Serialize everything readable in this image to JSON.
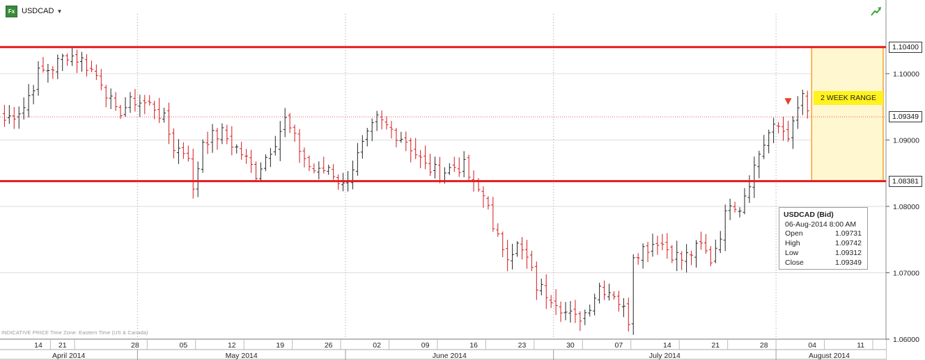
{
  "header": {
    "symbol": "USDCAD",
    "badge": "Fx"
  },
  "footer": {
    "text": "INDICATIVE PRICE   Time Zone: Eastern Time (US & Canada)"
  },
  "info_box": {
    "title": "USDCAD (Bid)",
    "datetime": "06-Aug-2014 8:00 AM",
    "rows": [
      {
        "label": "Open",
        "value": "1.09731"
      },
      {
        "label": "High",
        "value": "1.09742"
      },
      {
        "label": "Low",
        "value": "1.09312"
      },
      {
        "label": "Close",
        "value": "1.09349"
      }
    ]
  },
  "range_box": {
    "label": "2 WEEK RANGE",
    "top": 1.104,
    "bottom": 1.08381
  },
  "price_tags": [
    {
      "value": "1.10400",
      "price": 1.104
    },
    {
      "value": "1.09349",
      "price": 1.09349
    },
    {
      "value": "1.08381",
      "price": 1.08381
    }
  ],
  "colors": {
    "up": "#222222",
    "down": "#d4161a",
    "level_line": "#e21c1c",
    "range_fill": "#fff7cf",
    "range_border": "#f3a32b",
    "range_label_bg": "#fff21f"
  },
  "chart_data": {
    "type": "ohlc",
    "title": "USDCAD",
    "series_name": "USDCAD (Bid)",
    "ylim": [
      1.06,
      1.109
    ],
    "y_ticks": [
      "1.06000",
      "1.07000",
      "1.08000",
      "1.09000",
      "1.10000"
    ],
    "y_tick_values": [
      1.06,
      1.07,
      1.08,
      1.09,
      1.1
    ],
    "horizontal_levels": [
      1.104,
      1.08381
    ],
    "current_price": 1.09349,
    "x_day_ticks": [
      {
        "label": "14",
        "index": 7
      },
      {
        "label": "21",
        "index": 12
      },
      {
        "label": "28",
        "index": 27
      },
      {
        "label": "05",
        "index": 37
      },
      {
        "label": "12",
        "index": 47
      },
      {
        "label": "19",
        "index": 57
      },
      {
        "label": "26",
        "index": 67
      },
      {
        "label": "02",
        "index": 77
      },
      {
        "label": "09",
        "index": 87
      },
      {
        "label": "16",
        "index": 97
      },
      {
        "label": "23",
        "index": 107
      },
      {
        "label": "30",
        "index": 117
      },
      {
        "label": "07",
        "index": 127
      },
      {
        "label": "14",
        "index": 137
      },
      {
        "label": "21",
        "index": 147
      },
      {
        "label": "28",
        "index": 157
      },
      {
        "label": "04",
        "index": 167
      },
      {
        "label": "11",
        "index": 177
      }
    ],
    "x_month_labels": [
      {
        "label": "April 2014",
        "start": 0,
        "end": 28
      },
      {
        "label": "May 2014",
        "start": 28,
        "end": 71
      },
      {
        "label": "June 2014",
        "start": 71,
        "end": 114
      },
      {
        "label": "July 2014",
        "start": 114,
        "end": 160
      },
      {
        "label": "August 2014",
        "start": 160,
        "end": 182
      }
    ],
    "anchor_closes": [
      [
        0,
        1.093
      ],
      [
        4,
        1.095
      ],
      [
        7,
        1.1
      ],
      [
        10,
        1.101
      ],
      [
        13,
        1.103
      ],
      [
        16,
        1.102
      ],
      [
        20,
        1.099
      ],
      [
        23,
        1.094
      ],
      [
        27,
        1.096
      ],
      [
        31,
        1.095
      ],
      [
        33,
        1.093
      ],
      [
        35,
        1.089
      ],
      [
        38,
        1.088
      ],
      [
        39,
        1.082
      ],
      [
        41,
        1.09
      ],
      [
        45,
        1.091
      ],
      [
        49,
        1.088
      ],
      [
        52,
        1.085
      ],
      [
        56,
        1.09
      ],
      [
        58,
        1.093
      ],
      [
        60,
        1.09
      ],
      [
        63,
        1.086
      ],
      [
        65,
        1.085
      ],
      [
        67,
        1.086
      ],
      [
        70,
        1.083
      ],
      [
        74,
        1.089
      ],
      [
        77,
        1.093
      ],
      [
        79,
        1.092
      ],
      [
        83,
        1.09
      ],
      [
        87,
        1.086
      ],
      [
        90,
        1.085
      ],
      [
        93,
        1.086
      ],
      [
        95,
        1.086
      ],
      [
        97,
        1.083
      ],
      [
        100,
        1.081
      ],
      [
        101,
        1.076
      ],
      [
        104,
        1.073
      ],
      [
        106,
        1.074
      ],
      [
        108,
        1.072
      ],
      [
        110,
        1.068
      ],
      [
        114,
        1.066
      ],
      [
        116,
        1.064
      ],
      [
        118,
        1.063
      ],
      [
        120,
        1.064
      ],
      [
        123,
        1.068
      ],
      [
        126,
        1.067
      ],
      [
        129,
        1.063
      ],
      [
        130,
        1.073
      ],
      [
        133,
        1.074
      ],
      [
        135,
        1.075
      ],
      [
        138,
        1.073
      ],
      [
        140,
        1.072
      ],
      [
        144,
        1.074
      ],
      [
        146,
        1.072
      ],
      [
        148,
        1.076
      ],
      [
        150,
        1.081
      ],
      [
        152,
        1.08
      ],
      [
        154,
        1.084
      ],
      [
        156,
        1.088
      ],
      [
        158,
        1.091
      ],
      [
        160,
        1.092
      ],
      [
        162,
        1.091
      ],
      [
        163,
        1.092
      ],
      [
        165,
        1.097
      ],
      [
        166,
        1.0935
      ]
    ]
  }
}
